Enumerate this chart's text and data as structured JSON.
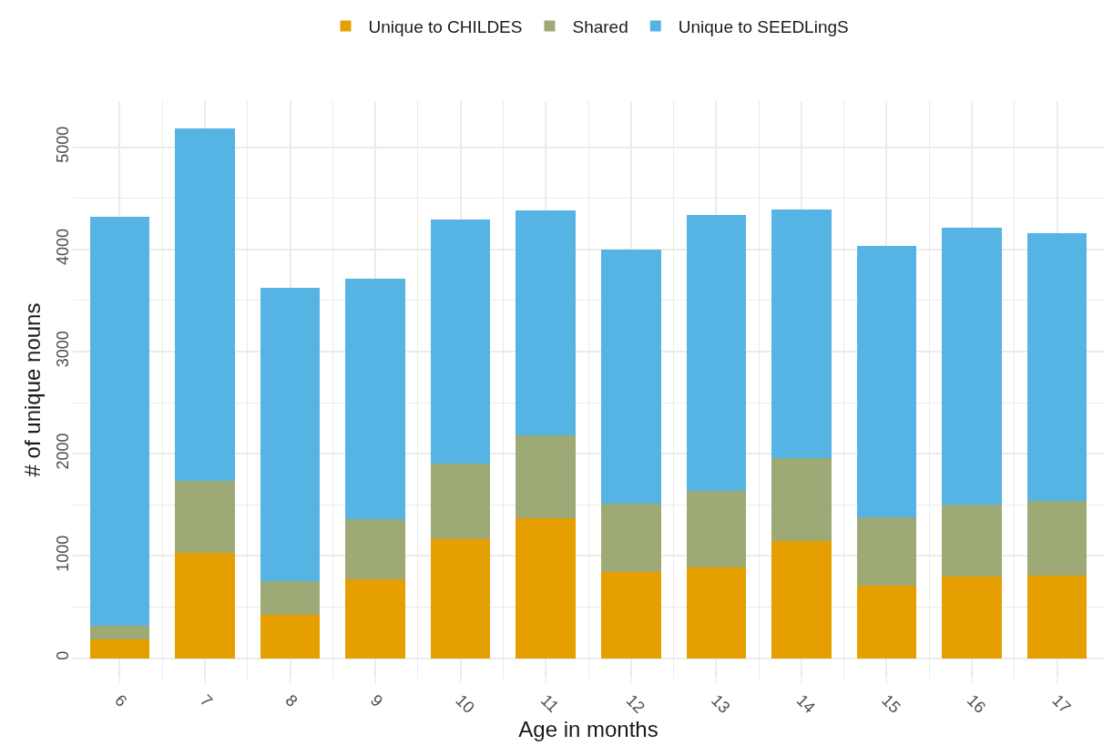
{
  "chart_data": {
    "type": "bar",
    "stacked": true,
    "xlabel": "Age in months",
    "ylabel": "# of unique nouns",
    "categories": [
      "6",
      "7",
      "8",
      "9",
      "10",
      "11",
      "12",
      "13",
      "14",
      "15",
      "16",
      "17"
    ],
    "series": [
      {
        "name": "Unique to CHILDES",
        "color": "#e69f00",
        "values": [
          180,
          1030,
          420,
          770,
          1160,
          1370,
          840,
          890,
          1150,
          710,
          800,
          810
        ]
      },
      {
        "name": "Shared",
        "color": "#9eaa75",
        "values": [
          140,
          700,
          330,
          590,
          740,
          810,
          670,
          750,
          810,
          670,
          700,
          730
        ]
      },
      {
        "name": "Unique to SEEDLingS",
        "color": "#56b4e4",
        "values": [
          4000,
          3450,
          2870,
          2350,
          2390,
          2200,
          2490,
          2700,
          2430,
          2650,
          2710,
          2620
        ]
      }
    ],
    "ylim": [
      -200,
      5450
    ],
    "yticks": [
      0,
      1000,
      2000,
      3000,
      4000,
      5000
    ],
    "grid": true,
    "legend": "top"
  }
}
